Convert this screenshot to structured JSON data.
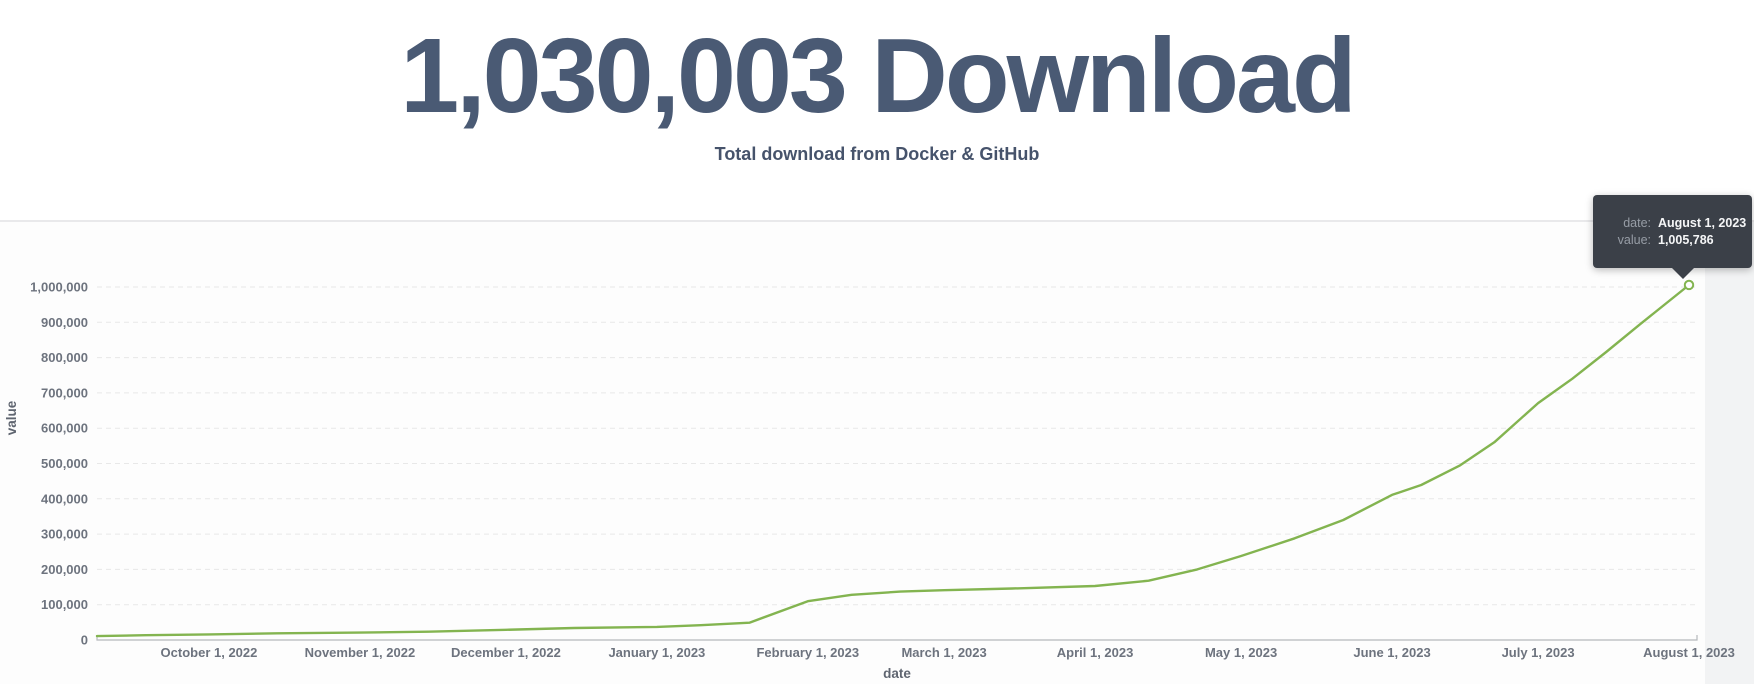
{
  "header": {
    "title": "1,030,003 Download",
    "subtitle": "Total download from Docker & GitHub"
  },
  "tooltip": {
    "date_label": "date:",
    "date_value": "August 1, 2023",
    "value_label": "value:",
    "value_value": "1,005,786"
  },
  "chart_data": {
    "type": "line",
    "title": "",
    "xlabel": "date",
    "ylabel": "value",
    "legend": "none",
    "grid": "dashed-horizontal",
    "line_color": "#83b450",
    "marker": {
      "shape": "open-circle",
      "on": "last-point"
    },
    "ylim": [
      0,
      1060000
    ],
    "y_ticks": [
      {
        "label": "0",
        "value": 0
      },
      {
        "label": "100,000",
        "value": 100000
      },
      {
        "label": "200,000",
        "value": 200000
      },
      {
        "label": "300,000",
        "value": 300000
      },
      {
        "label": "400,000",
        "value": 400000
      },
      {
        "label": "500,000",
        "value": 500000
      },
      {
        "label": "600,000",
        "value": 600000
      },
      {
        "label": "700,000",
        "value": 700000
      },
      {
        "label": "800,000",
        "value": 800000
      },
      {
        "label": "900,000",
        "value": 900000
      },
      {
        "label": "1,000,000",
        "value": 1000000
      }
    ],
    "x_domain_days": [
      0,
      327
    ],
    "x_ticks": [
      {
        "label": "October 1, 2022",
        "day": 23
      },
      {
        "label": "November 1, 2022",
        "day": 54
      },
      {
        "label": "December 1, 2022",
        "day": 84
      },
      {
        "label": "January 1, 2023",
        "day": 115
      },
      {
        "label": "February 1, 2023",
        "day": 146
      },
      {
        "label": "March 1, 2023",
        "day": 174
      },
      {
        "label": "April 1, 2023",
        "day": 205
      },
      {
        "label": "May 1, 2023",
        "day": 235
      },
      {
        "label": "June 1, 2023",
        "day": 266
      },
      {
        "label": "July 1, 2023",
        "day": 296
      },
      {
        "label": "August 1, 2023",
        "day": 327
      }
    ],
    "points": [
      {
        "date": "September 8, 2022",
        "day": 0,
        "value": 11000
      },
      {
        "date": "September 18, 2022",
        "day": 10,
        "value": 13500
      },
      {
        "date": "October 1, 2022",
        "day": 23,
        "value": 16000
      },
      {
        "date": "October 15, 2022",
        "day": 37,
        "value": 19000
      },
      {
        "date": "November 1, 2022",
        "day": 54,
        "value": 21000
      },
      {
        "date": "November 15, 2022",
        "day": 68,
        "value": 23500
      },
      {
        "date": "December 1, 2022",
        "day": 84,
        "value": 29000
      },
      {
        "date": "December 15, 2022",
        "day": 98,
        "value": 34000
      },
      {
        "date": "January 1, 2023",
        "day": 115,
        "value": 37000
      },
      {
        "date": "January 10, 2023",
        "day": 124,
        "value": 42000
      },
      {
        "date": "January 20, 2023",
        "day": 134,
        "value": 49000
      },
      {
        "date": "February 1, 2023",
        "day": 146,
        "value": 110000
      },
      {
        "date": "February 10, 2023",
        "day": 155,
        "value": 128000
      },
      {
        "date": "February 20, 2023",
        "day": 165,
        "value": 137000
      },
      {
        "date": "March 1, 2023",
        "day": 174,
        "value": 141000
      },
      {
        "date": "March 15, 2023",
        "day": 188,
        "value": 146000
      },
      {
        "date": "April 1, 2023",
        "day": 205,
        "value": 153000
      },
      {
        "date": "April 12, 2023",
        "day": 216,
        "value": 168000
      },
      {
        "date": "April 22, 2023",
        "day": 226,
        "value": 200000
      },
      {
        "date": "May 1, 2023",
        "day": 235,
        "value": 238000
      },
      {
        "date": "May 12, 2023",
        "day": 246,
        "value": 288000
      },
      {
        "date": "May 22, 2023",
        "day": 256,
        "value": 340000
      },
      {
        "date": "June 1, 2023",
        "day": 266,
        "value": 411000
      },
      {
        "date": "June 7, 2023",
        "day": 272,
        "value": 439000
      },
      {
        "date": "June 15, 2023",
        "day": 280,
        "value": 495000
      },
      {
        "date": "June 22, 2023",
        "day": 287,
        "value": 560000
      },
      {
        "date": "July 1, 2023",
        "day": 296,
        "value": 671000
      },
      {
        "date": "July 8, 2023",
        "day": 303,
        "value": 740000
      },
      {
        "date": "July 15, 2023",
        "day": 310,
        "value": 816000
      },
      {
        "date": "July 22, 2023",
        "day": 317,
        "value": 895000
      },
      {
        "date": "August 1, 2023",
        "day": 327,
        "value": 1005786
      }
    ],
    "colors": {
      "grid": "#e8e8e8",
      "axis": "#b6b9bd",
      "tick_label": "#6d737e",
      "axis_title": "#5f6570",
      "tooltip_bg": "#3b4048",
      "title_text": "#4a5a74"
    }
  }
}
